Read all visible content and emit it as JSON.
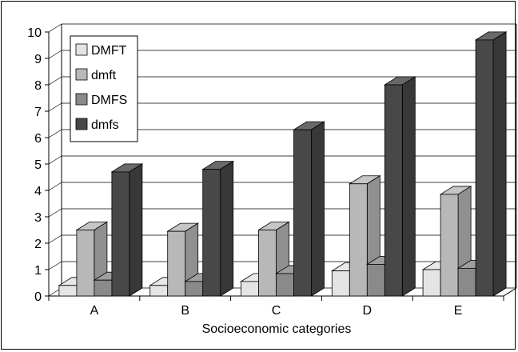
{
  "chart_data": {
    "type": "bar",
    "title": "",
    "xlabel": "Socioeconomic categories",
    "ylabel": "",
    "categories": [
      "A",
      "B",
      "C",
      "D",
      "E"
    ],
    "ylim": [
      0,
      10
    ],
    "yticks": [
      "0",
      "1",
      "2",
      "3",
      "4",
      "5",
      "6",
      "7",
      "8",
      "9",
      "10"
    ],
    "grid": true,
    "legend_position": "top-left",
    "series": [
      {
        "name": "DMFT",
        "values": [
          0.4,
          0.4,
          0.55,
          0.95,
          1.0
        ],
        "color": "#e4e4e4"
      },
      {
        "name": "dmft",
        "values": [
          2.5,
          2.45,
          2.5,
          4.25,
          3.85
        ],
        "color": "#b8b8b8"
      },
      {
        "name": "DMFS",
        "values": [
          0.6,
          0.55,
          0.85,
          1.2,
          1.05
        ],
        "color": "#8a8a8a"
      },
      {
        "name": "dmfs",
        "values": [
          4.7,
          4.8,
          6.3,
          8.0,
          9.7
        ],
        "color": "#484848"
      }
    ]
  }
}
